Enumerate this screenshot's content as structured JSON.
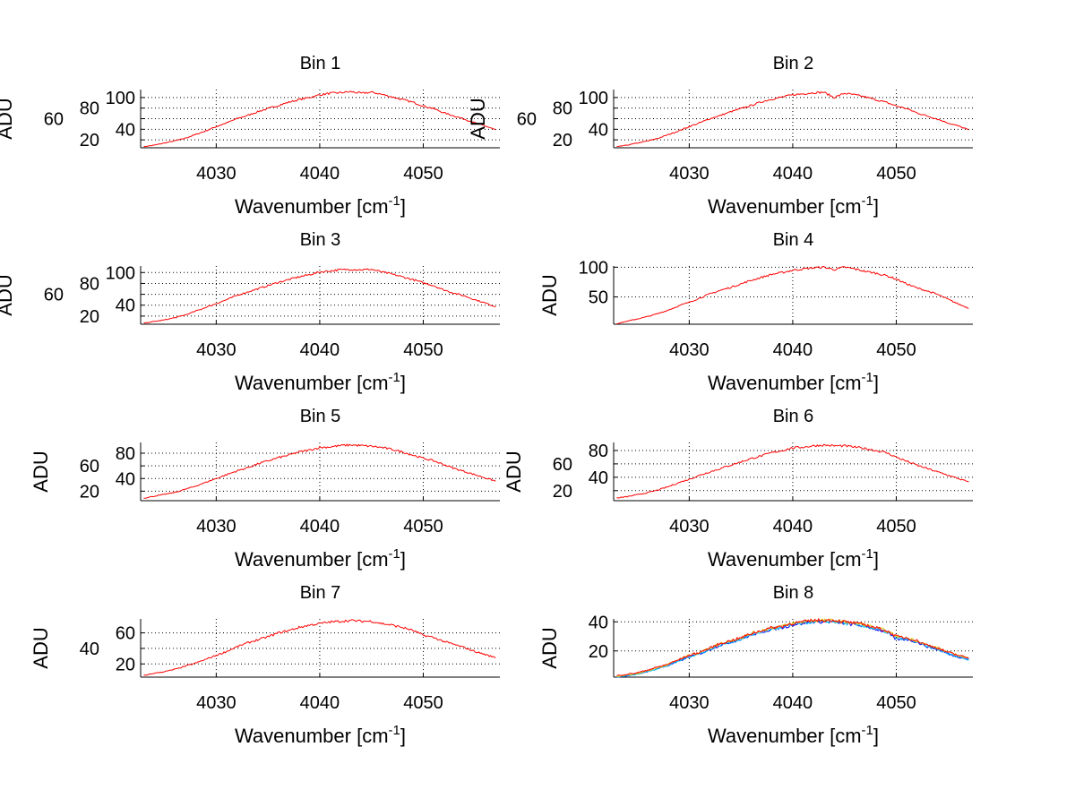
{
  "chart_data": [
    {
      "type": "line",
      "title": "Bin 1",
      "xlabel": "Wavenumber [cm",
      "xlabel_sup": "-1",
      "xlabel_end": "]",
      "ylabel": "ADU",
      "xlim": [
        4022.7,
        4057.4
      ],
      "ylim": [
        5,
        115
      ],
      "xticks": [
        4030,
        4040,
        4050
      ],
      "yticks": [
        20,
        40,
        60,
        80,
        100
      ],
      "grid": true,
      "series": [
        {
          "name": "bin1",
          "color": "#ff0000",
          "values": [
            7,
            10,
            14,
            18,
            23,
            30,
            37,
            45,
            52,
            60,
            66,
            73,
            79,
            85,
            91,
            96,
            100,
            105,
            108,
            109,
            111,
            108,
            110,
            106,
            101,
            96,
            91,
            84,
            79,
            71,
            65,
            59,
            52,
            46,
            39
          ]
        }
      ]
    },
    {
      "type": "line",
      "title": "Bin 2",
      "xlabel": "Wavenumber [cm",
      "xlabel_sup": "-1",
      "xlabel_end": "]",
      "ylabel": "ADU",
      "xlim": [
        4022.7,
        4057.4
      ],
      "ylim": [
        5,
        115
      ],
      "xticks": [
        4030,
        4040,
        4050
      ],
      "yticks": [
        20,
        40,
        60,
        80,
        100
      ],
      "grid": true,
      "series": [
        {
          "name": "bin2",
          "color": "#ff0000",
          "values": [
            7,
            10,
            14,
            18,
            23,
            30,
            37,
            45,
            52,
            60,
            66,
            73,
            79,
            85,
            92,
            97,
            101,
            105,
            107,
            109,
            110,
            100,
            108,
            105,
            101,
            96,
            91,
            84,
            79,
            71,
            65,
            59,
            52,
            46,
            39
          ]
        }
      ]
    },
    {
      "type": "line",
      "title": "Bin 3",
      "xlabel": "Wavenumber [cm",
      "xlabel_sup": "-1",
      "xlabel_end": "]",
      "ylabel": "ADU",
      "xlim": [
        4022.7,
        4057.4
      ],
      "ylim": [
        5,
        112
      ],
      "xticks": [
        4030,
        4040,
        4050
      ],
      "yticks": [
        20,
        40,
        60,
        80,
        100
      ],
      "grid": true,
      "series": [
        {
          "name": "bin3",
          "color": "#ff0000",
          "values": [
            7,
            10,
            13,
            17,
            22,
            29,
            36,
            43,
            50,
            58,
            64,
            70,
            76,
            82,
            87,
            92,
            96,
            101,
            103,
            105,
            106,
            105,
            106,
            101,
            97,
            92,
            87,
            81,
            76,
            68,
            62,
            57,
            50,
            44,
            37
          ]
        }
      ]
    },
    {
      "type": "line",
      "title": "Bin 4",
      "xlabel": "Wavenumber [cm",
      "xlabel_sup": "-1",
      "xlabel_end": "]",
      "ylabel": "ADU",
      "xlim": [
        4022.7,
        4057.4
      ],
      "ylim": [
        4,
        102
      ],
      "xticks": [
        4030,
        4040,
        4050
      ],
      "yticks": [
        50,
        100
      ],
      "grid": true,
      "series": [
        {
          "name": "bin4",
          "color": "#ff0000",
          "values": [
            5,
            9,
            13,
            17,
            22,
            28,
            35,
            41,
            48,
            55,
            61,
            66,
            72,
            78,
            83,
            88,
            91,
            95,
            97,
            99,
            100,
            96,
            100,
            97,
            93,
            90,
            86,
            80,
            72,
            65,
            60,
            54,
            46,
            38,
            31
          ]
        }
      ]
    },
    {
      "type": "line",
      "title": "Bin 5",
      "xlabel": "Wavenumber [cm",
      "xlabel_sup": "-1",
      "xlabel_end": "]",
      "ylabel": "ADU",
      "xlim": [
        4022.7,
        4057.4
      ],
      "ylim": [
        5,
        97
      ],
      "xticks": [
        4030,
        4040,
        4050
      ],
      "yticks": [
        20,
        40,
        60,
        80
      ],
      "grid": true,
      "series": [
        {
          "name": "bin5",
          "color": "#ff0000",
          "values": [
            9,
            12,
            15,
            18,
            23,
            28,
            34,
            40,
            46,
            52,
            57,
            63,
            68,
            73,
            77,
            82,
            85,
            89,
            90,
            92,
            93,
            92,
            91,
            89,
            86,
            82,
            77,
            72,
            68,
            62,
            56,
            51,
            46,
            41,
            36
          ]
        }
      ]
    },
    {
      "type": "line",
      "title": "Bin 6",
      "xlabel": "Wavenumber [cm",
      "xlabel_sup": "-1",
      "xlabel_end": "]",
      "ylabel": "ADU",
      "xlim": [
        4022.7,
        4057.4
      ],
      "ylim": [
        5,
        92
      ],
      "xticks": [
        4030,
        4040,
        4050
      ],
      "yticks": [
        20,
        40,
        60,
        80
      ],
      "grid": true,
      "series": [
        {
          "name": "bin6",
          "color": "#ff0000",
          "values": [
            9,
            11,
            14,
            17,
            21,
            26,
            32,
            37,
            43,
            48,
            53,
            58,
            63,
            68,
            72,
            77,
            80,
            84,
            85,
            87,
            88,
            87,
            87,
            85,
            83,
            80,
            77,
            70,
            64,
            58,
            53,
            48,
            43,
            38,
            33
          ]
        }
      ]
    },
    {
      "type": "line",
      "title": "Bin 7",
      "xlabel": "Wavenumber [cm",
      "xlabel_sup": "-1",
      "xlabel_end": "]",
      "ylabel": "ADU",
      "xlim": [
        4022.7,
        4057.4
      ],
      "ylim": [
        3,
        78
      ],
      "xticks": [
        4030,
        4040,
        4050
      ],
      "yticks": [
        20,
        40,
        60
      ],
      "grid": true,
      "series": [
        {
          "name": "bin7",
          "color": "#ff0000",
          "values": [
            5,
            8,
            10,
            13,
            17,
            21,
            26,
            31,
            36,
            42,
            47,
            51,
            55,
            60,
            63,
            67,
            70,
            72,
            74,
            75,
            76,
            75,
            75,
            72,
            70,
            67,
            63,
            57,
            54,
            49,
            45,
            41,
            36,
            32,
            28
          ]
        }
      ]
    },
    {
      "type": "line",
      "title": "Bin 8",
      "xlabel": "Wavenumber [cm",
      "xlabel_sup": "-1",
      "xlabel_end": "]",
      "ylabel": "ADU",
      "xlim": [
        4022.7,
        4057.4
      ],
      "ylim": [
        2,
        42
      ],
      "xticks": [
        4030,
        4040,
        4050
      ],
      "yticks": [
        20,
        40
      ],
      "grid": true,
      "series": [
        {
          "name": "series-blue",
          "color": "#0000ff",
          "values": [
            2,
            3,
            4,
            6,
            8,
            10,
            13,
            16,
            18,
            21,
            24,
            26,
            28,
            31,
            33,
            35,
            36,
            38,
            39,
            40,
            40,
            40,
            39,
            38,
            37,
            35,
            33,
            28,
            28,
            26,
            23,
            21,
            18,
            16,
            14
          ]
        },
        {
          "name": "series-cyan",
          "color": "#00bfff",
          "values": [
            2,
            3,
            4,
            6,
            8,
            10,
            13,
            16,
            18,
            21,
            24,
            26,
            28,
            31,
            33,
            35,
            36,
            38,
            39,
            40,
            40,
            40,
            39,
            38,
            37,
            35,
            33,
            29,
            28,
            26,
            23,
            21,
            18,
            16,
            14
          ]
        },
        {
          "name": "series-yellow",
          "color": "#e0c000",
          "values": [
            2.5,
            3.5,
            4.5,
            6.5,
            8.5,
            11,
            14,
            17,
            19,
            22,
            25,
            27,
            29,
            32,
            34,
            36,
            37,
            39,
            40,
            41,
            41,
            41,
            40,
            39,
            38,
            36,
            34,
            30,
            29,
            27,
            24,
            22,
            19,
            17,
            15
          ]
        },
        {
          "name": "series-red",
          "color": "#ff0000",
          "values": [
            3,
            4,
            5,
            7,
            9,
            11,
            14,
            17,
            19,
            22,
            25,
            27,
            29,
            32,
            34,
            36,
            37,
            39,
            40,
            41,
            41,
            41,
            40,
            39,
            38,
            36,
            34,
            30,
            29,
            27,
            24,
            22,
            19,
            17,
            15
          ]
        }
      ]
    }
  ],
  "x_values": [
    4023,
    4024,
    4025,
    4026,
    4027,
    4028,
    4029,
    4030,
    4031,
    4032,
    4033,
    4034,
    4035,
    4036,
    4037,
    4038,
    4039,
    4040,
    4041,
    4042,
    4043,
    4044,
    4045,
    4046,
    4047,
    4048,
    4049,
    4050,
    4051,
    4052,
    4053,
    4054,
    4055,
    4056,
    4057
  ]
}
